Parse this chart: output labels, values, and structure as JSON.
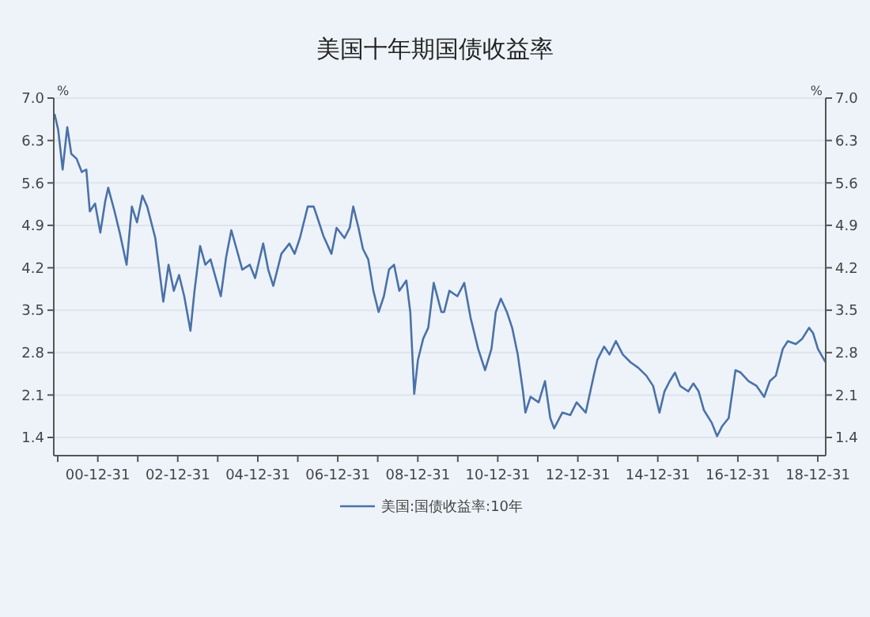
{
  "chart_data": {
    "type": "line",
    "title": "美国十年期国债收益率",
    "ylabel": "%",
    "y2label": "%",
    "xlim": [
      "1999-11-25",
      "2019-03-13"
    ],
    "xticks": [
      {
        "value": "1999-12-31",
        "label": null
      },
      {
        "value": "2000-12-31",
        "label": "00-12-31"
      },
      {
        "value": "2001-12-31",
        "label": null
      },
      {
        "value": "2002-12-31",
        "label": "02-12-31"
      },
      {
        "value": "2003-12-31",
        "label": null
      },
      {
        "value": "2004-12-31",
        "label": "04-12-31"
      },
      {
        "value": "2005-12-31",
        "label": null
      },
      {
        "value": "2006-12-31",
        "label": "06-12-31"
      },
      {
        "value": "2007-12-31",
        "label": null
      },
      {
        "value": "2008-12-31",
        "label": "08-12-31"
      },
      {
        "value": "2009-12-31",
        "label": null
      },
      {
        "value": "2010-12-31",
        "label": "10-12-31"
      },
      {
        "value": "2011-12-31",
        "label": null
      },
      {
        "value": "2012-12-31",
        "label": "12-12-31"
      },
      {
        "value": "2013-12-31",
        "label": null
      },
      {
        "value": "2014-12-31",
        "label": "14-12-31"
      },
      {
        "value": "2015-12-31",
        "label": null
      },
      {
        "value": "2016-12-31",
        "label": "16-12-31"
      },
      {
        "value": "2017-12-31",
        "label": null
      },
      {
        "value": "2018-12-31",
        "label": "18-12-31"
      }
    ],
    "ylim": [
      1.1,
      7.0
    ],
    "yticks": [
      {
        "value": 1.4,
        "label": "1.4"
      },
      {
        "value": 2.1,
        "label": "2.1"
      },
      {
        "value": 2.8,
        "label": "2.8"
      },
      {
        "value": 3.5,
        "label": "3.5"
      },
      {
        "value": 4.2,
        "label": "4.2"
      },
      {
        "value": 4.9,
        "label": "4.9"
      },
      {
        "value": 5.6,
        "label": "5.6"
      },
      {
        "value": 6.3,
        "label": "6.3"
      },
      {
        "value": 7.0,
        "label": "7.0"
      }
    ],
    "y2lim": [
      1.1,
      7.0
    ],
    "y2ticks": [
      {
        "value": 1.4,
        "label": "1.4"
      },
      {
        "value": 2.1,
        "label": "2.1"
      },
      {
        "value": 2.8,
        "label": "2.8"
      },
      {
        "value": 3.5,
        "label": "3.5"
      },
      {
        "value": 4.2,
        "label": "4.2"
      },
      {
        "value": 4.9,
        "label": "4.9"
      },
      {
        "value": 5.6,
        "label": "5.6"
      },
      {
        "value": 6.3,
        "label": "6.3"
      },
      {
        "value": 7.0,
        "label": "7.0"
      }
    ],
    "grid": "y",
    "legend": "bottom",
    "line_style": "solid",
    "marker": "none",
    "series": [
      {
        "name": "美国:国债收益率:10年",
        "color": "#4a72a8",
        "x": [
          "1999-12-02",
          "2000-01-04",
          "2000-02-14",
          "2000-03-27",
          "2000-05-03",
          "2000-06-20",
          "2000-08-07",
          "2000-09-17",
          "2000-10-19",
          "2000-12-06",
          "2001-01-23",
          "2001-03-09",
          "2001-04-05",
          "2001-06-02",
          "2001-07-19",
          "2001-09-20",
          "2001-11-07",
          "2001-12-24",
          "2002-02-11",
          "2002-03-27",
          "2002-06-09",
          "2002-08-21",
          "2002-10-08",
          "2002-11-25",
          "2003-01-12",
          "2003-02-28",
          "2003-04-26",
          "2003-06-02",
          "2003-07-23",
          "2003-09-09",
          "2003-10-26",
          "2003-12-13",
          "2004-01-28",
          "2004-03-17",
          "2004-05-03",
          "2004-06-20",
          "2004-08-11",
          "2004-10-19",
          "2004-12-06",
          "2005-02-18",
          "2005-04-05",
          "2005-05-21",
          "2005-08-03",
          "2005-10-15",
          "2005-12-02",
          "2006-01-19",
          "2006-04-01",
          "2006-05-25",
          "2006-07-05",
          "2006-08-21",
          "2006-11-03",
          "2006-12-20",
          "2007-03-02",
          "2007-04-19",
          "2007-05-21",
          "2007-07-08",
          "2007-08-18",
          "2007-10-05",
          "2007-11-21",
          "2008-01-08",
          "2008-02-25",
          "2008-04-12",
          "2008-05-28",
          "2008-07-15",
          "2008-09-17",
          "2008-10-23",
          "2008-11-28",
          "2009-01-01",
          "2009-02-18",
          "2009-04-05",
          "2009-05-25",
          "2009-08-03",
          "2009-08-28",
          "2009-10-15",
          "2009-12-27",
          "2010-02-28",
          "2010-04-26",
          "2010-07-05",
          "2010-09-06",
          "2010-11-03",
          "2010-12-13",
          "2011-01-28",
          "2011-03-24",
          "2011-05-11",
          "2011-07-01",
          "2011-08-18",
          "2011-09-09",
          "2011-10-26",
          "2012-01-08",
          "2012-03-06",
          "2012-04-23",
          "2012-05-28",
          "2012-08-11",
          "2012-10-23",
          "2012-12-20",
          "2013-03-13",
          "2013-05-25",
          "2013-06-27",
          "2013-08-28",
          "2013-10-15",
          "2013-12-13",
          "2014-02-14",
          "2014-04-26",
          "2014-07-05",
          "2014-09-17",
          "2014-11-18",
          "2015-01-15",
          "2015-03-02",
          "2015-04-19",
          "2015-06-06",
          "2015-07-23",
          "2015-10-05",
          "2015-11-21",
          "2016-01-08",
          "2016-02-25",
          "2016-05-07",
          "2016-06-24",
          "2016-08-11",
          "2016-10-08",
          "2016-12-09",
          "2017-01-26",
          "2017-04-08",
          "2017-06-20",
          "2017-08-28",
          "2017-10-19",
          "2017-12-13",
          "2018-02-14",
          "2018-04-01",
          "2018-06-13",
          "2018-08-11",
          "2018-10-12",
          "2018-11-18",
          "2019-01-01",
          "2019-02-11",
          "2019-03-13"
        ],
        "values": [
          6.74,
          6.48,
          5.82,
          6.52,
          6.08,
          6.0,
          5.78,
          5.82,
          5.13,
          5.26,
          4.78,
          5.3,
          5.52,
          5.13,
          4.78,
          4.25,
          5.21,
          4.95,
          5.39,
          5.21,
          4.69,
          3.64,
          4.25,
          3.82,
          4.08,
          3.73,
          3.16,
          3.82,
          4.56,
          4.25,
          4.34,
          4.03,
          3.73,
          4.38,
          4.82,
          4.51,
          4.17,
          4.25,
          4.03,
          4.6,
          4.17,
          3.9,
          4.43,
          4.6,
          4.43,
          4.69,
          5.21,
          5.21,
          4.99,
          4.73,
          4.43,
          4.86,
          4.69,
          4.86,
          5.21,
          4.86,
          4.51,
          4.34,
          3.82,
          3.47,
          3.73,
          4.17,
          4.25,
          3.82,
          3.99,
          3.47,
          2.12,
          2.68,
          3.03,
          3.21,
          3.95,
          3.47,
          3.47,
          3.82,
          3.73,
          3.95,
          3.38,
          2.86,
          2.51,
          2.86,
          3.47,
          3.69,
          3.47,
          3.21,
          2.77,
          2.16,
          1.81,
          2.07,
          1.98,
          2.33,
          1.72,
          1.55,
          1.81,
          1.77,
          1.98,
          1.81,
          2.42,
          2.68,
          2.9,
          2.77,
          2.99,
          2.77,
          2.64,
          2.55,
          2.42,
          2.25,
          1.81,
          2.16,
          2.33,
          2.47,
          2.25,
          2.16,
          2.29,
          2.16,
          1.85,
          1.64,
          1.42,
          1.59,
          1.72,
          2.51,
          2.47,
          2.33,
          2.25,
          2.07,
          2.33,
          2.42,
          2.86,
          2.99,
          2.94,
          3.03,
          3.21,
          3.12,
          2.86,
          2.73,
          2.64
        ]
      }
    ]
  }
}
